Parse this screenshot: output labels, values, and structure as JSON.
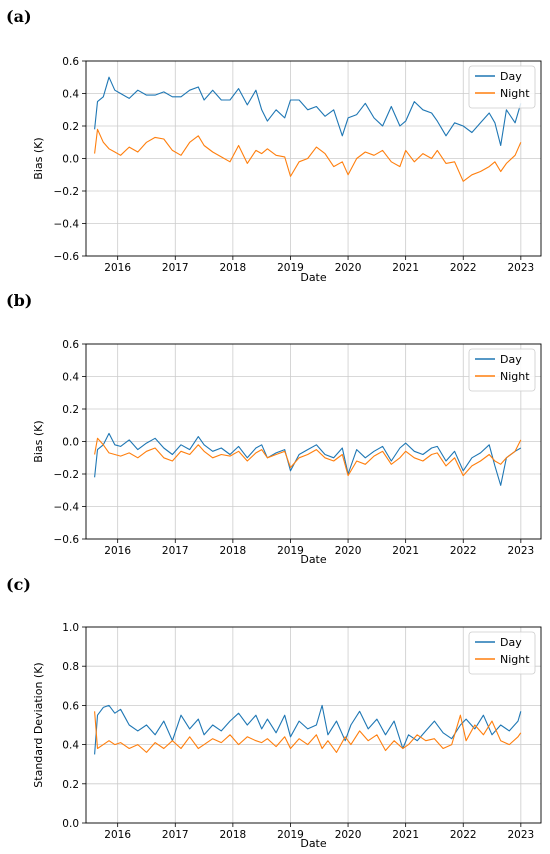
{
  "figure": {
    "panels": [
      {
        "letter": "(a)"
      },
      {
        "letter": "(b)"
      },
      {
        "letter": "(c)"
      }
    ]
  },
  "colors": {
    "day": "#1f77b4",
    "night": "#ff7f0e",
    "grid": "#cccccc"
  },
  "chart_data": [
    {
      "type": "line",
      "panel": "(a)",
      "xlabel": "Date",
      "ylabel": "Bias (K)",
      "xticks": [
        "2016",
        "2017",
        "2018",
        "2019",
        "2020",
        "2021",
        "2022",
        "2023"
      ],
      "yticks": [
        "0.6",
        "0.4",
        "0.2",
        "0.0",
        "−0.2",
        "−0.4",
        "−0.6"
      ],
      "xlim": [
        2015.45,
        2023.35
      ],
      "ylim": [
        -0.6,
        0.6
      ],
      "grid": true,
      "legend": "top-right",
      "series": [
        {
          "name": "Day",
          "color_key": "day",
          "x": [
            2015.6,
            2015.65,
            2015.75,
            2015.85,
            2015.95,
            2016.05,
            2016.2,
            2016.35,
            2016.5,
            2016.65,
            2016.8,
            2016.95,
            2017.1,
            2017.25,
            2017.4,
            2017.5,
            2017.65,
            2017.8,
            2017.95,
            2018.1,
            2018.25,
            2018.4,
            2018.5,
            2018.6,
            2018.75,
            2018.9,
            2019.0,
            2019.15,
            2019.3,
            2019.45,
            2019.6,
            2019.75,
            2019.9,
            2020.0,
            2020.15,
            2020.3,
            2020.45,
            2020.6,
            2020.75,
            2020.9,
            2021.0,
            2021.15,
            2021.3,
            2021.45,
            2021.55,
            2021.7,
            2021.85,
            2022.0,
            2022.15,
            2022.3,
            2022.45,
            2022.55,
            2022.65,
            2022.75,
            2022.9,
            2023.0
          ],
          "y": [
            0.18,
            0.35,
            0.38,
            0.5,
            0.42,
            0.4,
            0.37,
            0.42,
            0.39,
            0.39,
            0.41,
            0.38,
            0.38,
            0.42,
            0.44,
            0.36,
            0.42,
            0.36,
            0.36,
            0.43,
            0.33,
            0.42,
            0.3,
            0.23,
            0.3,
            0.25,
            0.36,
            0.36,
            0.3,
            0.32,
            0.26,
            0.3,
            0.14,
            0.25,
            0.27,
            0.34,
            0.25,
            0.2,
            0.32,
            0.2,
            0.23,
            0.35,
            0.3,
            0.28,
            0.23,
            0.14,
            0.22,
            0.2,
            0.16,
            0.22,
            0.28,
            0.22,
            0.08,
            0.3,
            0.22,
            0.34
          ]
        },
        {
          "name": "Night",
          "color_key": "night",
          "x": [
            2015.6,
            2015.65,
            2015.75,
            2015.85,
            2015.95,
            2016.05,
            2016.2,
            2016.35,
            2016.5,
            2016.65,
            2016.8,
            2016.95,
            2017.1,
            2017.25,
            2017.4,
            2017.5,
            2017.65,
            2017.8,
            2017.95,
            2018.1,
            2018.25,
            2018.4,
            2018.5,
            2018.6,
            2018.75,
            2018.9,
            2019.0,
            2019.15,
            2019.3,
            2019.45,
            2019.6,
            2019.75,
            2019.9,
            2020.0,
            2020.15,
            2020.3,
            2020.45,
            2020.6,
            2020.75,
            2020.9,
            2021.0,
            2021.15,
            2021.3,
            2021.45,
            2021.55,
            2021.7,
            2021.85,
            2022.0,
            2022.15,
            2022.3,
            2022.45,
            2022.55,
            2022.65,
            2022.75,
            2022.9,
            2023.0
          ],
          "y": [
            0.03,
            0.18,
            0.1,
            0.06,
            0.04,
            0.02,
            0.07,
            0.04,
            0.1,
            0.13,
            0.12,
            0.05,
            0.02,
            0.1,
            0.14,
            0.08,
            0.04,
            0.01,
            -0.02,
            0.08,
            -0.03,
            0.05,
            0.03,
            0.06,
            0.02,
            0.01,
            -0.11,
            -0.02,
            0.0,
            0.07,
            0.03,
            -0.05,
            -0.02,
            -0.1,
            0.0,
            0.04,
            0.02,
            0.05,
            -0.02,
            -0.05,
            0.05,
            -0.02,
            0.03,
            0.0,
            0.05,
            -0.03,
            -0.02,
            -0.14,
            -0.1,
            -0.08,
            -0.05,
            -0.02,
            -0.08,
            -0.03,
            0.02,
            0.1
          ]
        }
      ]
    },
    {
      "type": "line",
      "panel": "(b)",
      "xlabel": "Date",
      "ylabel": "Bias (K)",
      "xticks": [
        "2016",
        "2017",
        "2018",
        "2019",
        "2020",
        "2021",
        "2022",
        "2023"
      ],
      "yticks": [
        "0.6",
        "0.4",
        "0.2",
        "0.0",
        "−0.2",
        "−0.4",
        "−0.6"
      ],
      "xlim": [
        2015.45,
        2023.35
      ],
      "ylim": [
        -0.6,
        0.6
      ],
      "grid": true,
      "legend": "top-right",
      "series": [
        {
          "name": "Day",
          "color_key": "day",
          "x": [
            2015.6,
            2015.65,
            2015.75,
            2015.85,
            2015.95,
            2016.05,
            2016.2,
            2016.35,
            2016.5,
            2016.65,
            2016.8,
            2016.95,
            2017.1,
            2017.25,
            2017.4,
            2017.5,
            2017.65,
            2017.8,
            2017.95,
            2018.1,
            2018.25,
            2018.4,
            2018.5,
            2018.6,
            2018.75,
            2018.9,
            2019.0,
            2019.15,
            2019.3,
            2019.45,
            2019.6,
            2019.75,
            2019.9,
            2020.0,
            2020.15,
            2020.3,
            2020.45,
            2020.6,
            2020.75,
            2020.9,
            2021.0,
            2021.15,
            2021.3,
            2021.45,
            2021.55,
            2021.7,
            2021.85,
            2022.0,
            2022.15,
            2022.3,
            2022.45,
            2022.55,
            2022.65,
            2022.75,
            2022.9,
            2023.0
          ],
          "y": [
            -0.22,
            -0.05,
            -0.02,
            0.05,
            -0.02,
            -0.03,
            0.01,
            -0.05,
            -0.01,
            0.02,
            -0.04,
            -0.08,
            -0.02,
            -0.05,
            0.03,
            -0.02,
            -0.06,
            -0.04,
            -0.08,
            -0.03,
            -0.1,
            -0.04,
            -0.02,
            -0.1,
            -0.07,
            -0.05,
            -0.18,
            -0.08,
            -0.05,
            -0.02,
            -0.08,
            -0.1,
            -0.04,
            -0.2,
            -0.05,
            -0.1,
            -0.06,
            -0.03,
            -0.12,
            -0.04,
            -0.01,
            -0.06,
            -0.08,
            -0.04,
            -0.03,
            -0.12,
            -0.06,
            -0.18,
            -0.1,
            -0.07,
            -0.02,
            -0.15,
            -0.27,
            -0.1,
            -0.06,
            -0.04
          ]
        },
        {
          "name": "Night",
          "color_key": "night",
          "x": [
            2015.6,
            2015.65,
            2015.75,
            2015.85,
            2015.95,
            2016.05,
            2016.2,
            2016.35,
            2016.5,
            2016.65,
            2016.8,
            2016.95,
            2017.1,
            2017.25,
            2017.4,
            2017.5,
            2017.65,
            2017.8,
            2017.95,
            2018.1,
            2018.25,
            2018.4,
            2018.5,
            2018.6,
            2018.75,
            2018.9,
            2019.0,
            2019.15,
            2019.3,
            2019.45,
            2019.6,
            2019.75,
            2019.9,
            2020.0,
            2020.15,
            2020.3,
            2020.45,
            2020.6,
            2020.75,
            2020.9,
            2021.0,
            2021.15,
            2021.3,
            2021.45,
            2021.55,
            2021.7,
            2021.85,
            2022.0,
            2022.15,
            2022.3,
            2022.45,
            2022.55,
            2022.65,
            2022.75,
            2022.9,
            2023.0
          ],
          "y": [
            -0.08,
            0.02,
            -0.02,
            -0.07,
            -0.08,
            -0.09,
            -0.07,
            -0.1,
            -0.06,
            -0.04,
            -0.1,
            -0.12,
            -0.06,
            -0.08,
            -0.02,
            -0.06,
            -0.1,
            -0.08,
            -0.09,
            -0.06,
            -0.12,
            -0.07,
            -0.05,
            -0.1,
            -0.08,
            -0.06,
            -0.16,
            -0.1,
            -0.08,
            -0.05,
            -0.1,
            -0.12,
            -0.08,
            -0.21,
            -0.12,
            -0.14,
            -0.09,
            -0.06,
            -0.14,
            -0.1,
            -0.06,
            -0.1,
            -0.12,
            -0.08,
            -0.07,
            -0.15,
            -0.1,
            -0.21,
            -0.15,
            -0.12,
            -0.08,
            -0.12,
            -0.14,
            -0.1,
            -0.06,
            0.01
          ]
        }
      ]
    },
    {
      "type": "line",
      "panel": "(c)",
      "xlabel": "Date",
      "ylabel": "Standard Deviation (K)",
      "xticks": [
        "2016",
        "2017",
        "2018",
        "2019",
        "2020",
        "2021",
        "2022",
        "2023"
      ],
      "yticks": [
        "1.0",
        "0.8",
        "0.6",
        "0.4",
        "0.2",
        "0.0"
      ],
      "xlim": [
        2015.45,
        2023.35
      ],
      "ylim": [
        0.0,
        1.0
      ],
      "grid": true,
      "legend": "top-right",
      "series": [
        {
          "name": "Day",
          "color_key": "day",
          "x": [
            2015.6,
            2015.65,
            2015.75,
            2015.85,
            2015.95,
            2016.05,
            2016.2,
            2016.35,
            2016.5,
            2016.65,
            2016.8,
            2016.95,
            2017.1,
            2017.25,
            2017.4,
            2017.5,
            2017.65,
            2017.8,
            2017.95,
            2018.1,
            2018.25,
            2018.4,
            2018.5,
            2018.6,
            2018.75,
            2018.9,
            2019.0,
            2019.15,
            2019.3,
            2019.45,
            2019.55,
            2019.65,
            2019.8,
            2019.95,
            2020.05,
            2020.2,
            2020.35,
            2020.5,
            2020.65,
            2020.8,
            2020.95,
            2021.05,
            2021.2,
            2021.35,
            2021.5,
            2021.65,
            2021.8,
            2021.95,
            2022.05,
            2022.2,
            2022.35,
            2022.5,
            2022.65,
            2022.8,
            2022.95,
            2023.0
          ],
          "y": [
            0.35,
            0.55,
            0.59,
            0.6,
            0.56,
            0.58,
            0.5,
            0.47,
            0.5,
            0.45,
            0.52,
            0.42,
            0.55,
            0.48,
            0.53,
            0.45,
            0.5,
            0.47,
            0.52,
            0.56,
            0.5,
            0.55,
            0.48,
            0.53,
            0.46,
            0.55,
            0.44,
            0.52,
            0.48,
            0.5,
            0.6,
            0.45,
            0.52,
            0.42,
            0.5,
            0.57,
            0.48,
            0.53,
            0.45,
            0.52,
            0.38,
            0.45,
            0.42,
            0.47,
            0.52,
            0.46,
            0.43,
            0.5,
            0.53,
            0.48,
            0.55,
            0.45,
            0.5,
            0.47,
            0.52,
            0.57
          ]
        },
        {
          "name": "Night",
          "color_key": "night",
          "x": [
            2015.6,
            2015.65,
            2015.75,
            2015.85,
            2015.95,
            2016.05,
            2016.2,
            2016.35,
            2016.5,
            2016.65,
            2016.8,
            2016.95,
            2017.1,
            2017.25,
            2017.4,
            2017.5,
            2017.65,
            2017.8,
            2017.95,
            2018.1,
            2018.25,
            2018.4,
            2018.5,
            2018.6,
            2018.75,
            2018.9,
            2019.0,
            2019.15,
            2019.3,
            2019.45,
            2019.55,
            2019.65,
            2019.8,
            2019.95,
            2020.05,
            2020.2,
            2020.35,
            2020.5,
            2020.65,
            2020.8,
            2020.95,
            2021.05,
            2021.2,
            2021.35,
            2021.5,
            2021.65,
            2021.8,
            2021.95,
            2022.05,
            2022.2,
            2022.35,
            2022.5,
            2022.65,
            2022.8,
            2022.95,
            2023.0
          ],
          "y": [
            0.57,
            0.38,
            0.4,
            0.42,
            0.4,
            0.41,
            0.38,
            0.4,
            0.36,
            0.41,
            0.38,
            0.42,
            0.38,
            0.44,
            0.38,
            0.4,
            0.43,
            0.41,
            0.45,
            0.4,
            0.44,
            0.42,
            0.41,
            0.43,
            0.39,
            0.44,
            0.38,
            0.43,
            0.4,
            0.45,
            0.38,
            0.42,
            0.36,
            0.44,
            0.4,
            0.47,
            0.42,
            0.45,
            0.37,
            0.42,
            0.38,
            0.4,
            0.45,
            0.42,
            0.43,
            0.38,
            0.4,
            0.55,
            0.42,
            0.5,
            0.45,
            0.52,
            0.42,
            0.4,
            0.44,
            0.46
          ]
        }
      ]
    }
  ]
}
